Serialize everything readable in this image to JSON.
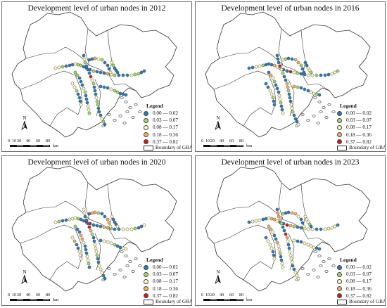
{
  "colors": {
    "classes": [
      "#2c7bb6",
      "#a6d96a",
      "#ffffbf",
      "#fdae61",
      "#d7191c"
    ],
    "boundary": "#333333",
    "panel_border": "#6f6f6f"
  },
  "panels": [
    {
      "title": "Development level of  urban nodes in 2012",
      "year": "2012",
      "legend_title": "Legend",
      "legend_items": [
        "0.00 — 0.02",
        "0.03 — 0.07",
        "0.08 — 0.17",
        "0.18 — 0.36",
        "0.37 — 0.82"
      ],
      "boundary_label": "Boundary of GBA",
      "north_label": "N",
      "scale_ticks": [
        "0",
        "10",
        "20",
        "40",
        "60",
        "80"
      ],
      "scale_unit": "km"
    },
    {
      "title": "Development level of  urban nodes in 2016",
      "year": "2016",
      "legend_title": "Legend",
      "legend_items": [
        "0.00 — 0.02",
        "0.03 — 0.07",
        "0.08 — 0.17",
        "0.18 — 0.36",
        "0.37 — 0.82"
      ],
      "boundary_label": "Boundary of GBA",
      "north_label": "N",
      "scale_ticks": [
        "0",
        "10",
        "20",
        "40",
        "60",
        "80"
      ],
      "scale_unit": "km"
    },
    {
      "title": "Development level of  urban nodes in 2020",
      "year": "2020",
      "legend_title": "Legend",
      "legend_items": [
        "0.00 — 0.02",
        "0.03 — 0.07",
        "0.08 — 0.17",
        "0.18 — 0.36",
        "0.37 — 0.82"
      ],
      "boundary_label": "Boundary of GBA",
      "north_label": "N",
      "scale_ticks": [
        "0",
        "10",
        "20",
        "40",
        "60",
        "80"
      ],
      "scale_unit": "km"
    },
    {
      "title": "Development level of  urban nodes in 2023",
      "year": "2023",
      "legend_title": "Legend",
      "legend_items": [
        "0.00 — 0.02",
        "0.03 — 0.07",
        "0.08 — 0.17",
        "0.18 — 0.36",
        "0.37 — 0.82"
      ],
      "boundary_label": "Boundary of GBA",
      "north_label": "N",
      "scale_ticks": [
        "0",
        "10",
        "20",
        "40",
        "60",
        "80"
      ],
      "scale_unit": "km"
    }
  ]
}
